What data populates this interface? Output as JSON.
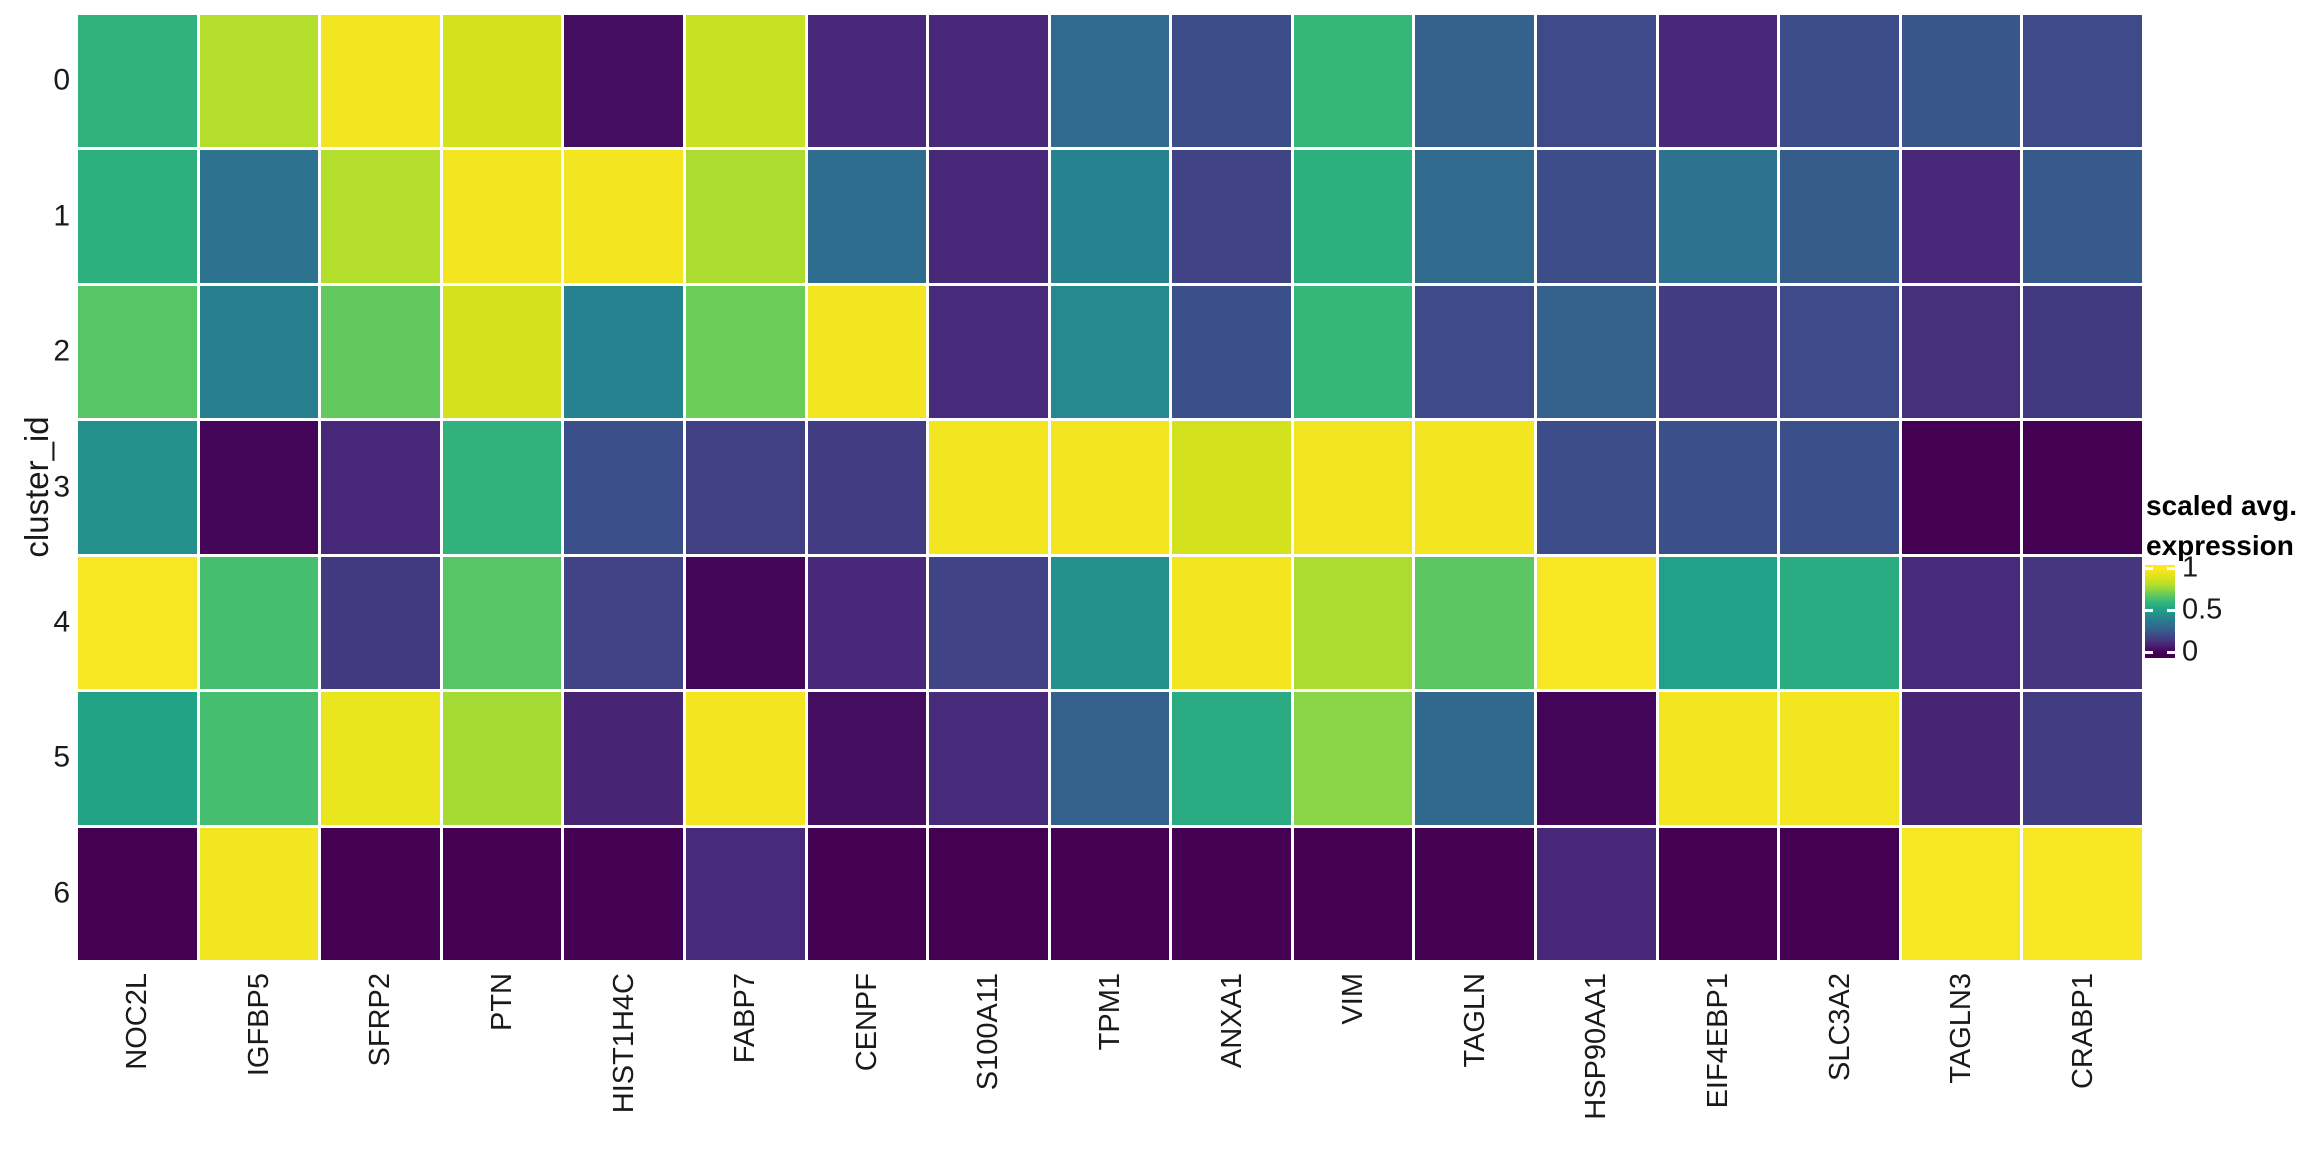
{
  "chart_data": {
    "type": "heatmap",
    "title": "",
    "x_categories": [
      "NOC2L",
      "IGFBP5",
      "SFRP2",
      "PTN",
      "HIST1H4C",
      "FABP7",
      "CENPF",
      "S100A11",
      "TPM1",
      "ANXA1",
      "VIM",
      "TAGLN",
      "HSP90AA1",
      "EIF4EBP1",
      "SLC3A2",
      "TAGLN3",
      "CRABP1"
    ],
    "y_categories": [
      "0",
      "1",
      "2",
      "3",
      "4",
      "5",
      "6"
    ],
    "y_axis_label": "cluster_id",
    "x_axis_label": "",
    "values": [
      [
        0.58,
        0.8,
        0.97,
        0.88,
        0.03,
        0.85,
        0.1,
        0.1,
        0.31,
        0.21,
        0.6,
        0.28,
        0.2,
        0.1,
        0.21,
        0.24,
        0.2
      ],
      [
        0.57,
        0.34,
        0.8,
        0.97,
        0.97,
        0.79,
        0.32,
        0.1,
        0.4,
        0.18,
        0.57,
        0.31,
        0.21,
        0.34,
        0.26,
        0.1,
        0.25
      ],
      [
        0.66,
        0.39,
        0.68,
        0.88,
        0.4,
        0.7,
        0.97,
        0.11,
        0.43,
        0.22,
        0.6,
        0.2,
        0.28,
        0.16,
        0.2,
        0.12,
        0.15
      ],
      [
        0.45,
        0.01,
        0.1,
        0.58,
        0.22,
        0.17,
        0.16,
        0.97,
        0.97,
        0.88,
        0.96,
        0.97,
        0.21,
        0.22,
        0.22,
        0.0,
        0.0
      ],
      [
        0.98,
        0.63,
        0.15,
        0.66,
        0.18,
        0.01,
        0.1,
        0.18,
        0.45,
        0.97,
        0.79,
        0.67,
        0.98,
        0.51,
        0.55,
        0.11,
        0.14
      ],
      [
        0.52,
        0.63,
        0.94,
        0.78,
        0.09,
        0.97,
        0.03,
        0.11,
        0.28,
        0.55,
        0.74,
        0.3,
        0.01,
        0.97,
        0.97,
        0.09,
        0.16
      ],
      [
        0.0,
        0.97,
        0.0,
        0.0,
        0.0,
        0.11,
        0.0,
        0.0,
        0.0,
        0.0,
        0.0,
        0.0,
        0.1,
        0.0,
        0.0,
        0.98,
        0.98
      ]
    ],
    "value_range": [
      0,
      1
    ],
    "colormap": "viridis",
    "viridis_stops": [
      [
        0.0,
        "#440154"
      ],
      [
        0.1,
        "#482878"
      ],
      [
        0.2,
        "#3e4a89"
      ],
      [
        0.3,
        "#31688e"
      ],
      [
        0.4,
        "#26828e"
      ],
      [
        0.5,
        "#1f9e89"
      ],
      [
        0.6,
        "#35b779"
      ],
      [
        0.7,
        "#6dcd59"
      ],
      [
        0.8,
        "#b4de2c"
      ],
      [
        0.9,
        "#dce319"
      ],
      [
        1.0,
        "#fde725"
      ]
    ],
    "grid": false,
    "grid_line_color": "#ffffff",
    "background_color": "#ffffff",
    "axis_text_color": "#1a1a1a",
    "legend": {
      "position": "right",
      "title_line1": "scaled avg.",
      "title_line2": "expression",
      "ticks": [
        {
          "label": "1",
          "value": 1
        },
        {
          "label": "0.5",
          "value": 0.5
        },
        {
          "label": "0",
          "value": 0
        }
      ],
      "bar_top_value": 1.04,
      "bar_bottom_value": -0.07
    }
  }
}
